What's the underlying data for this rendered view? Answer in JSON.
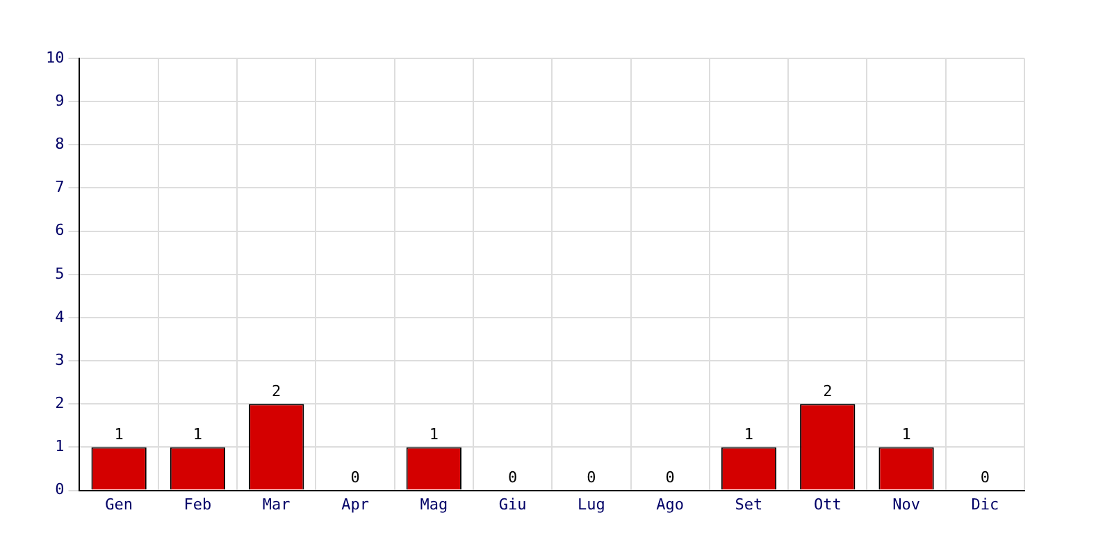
{
  "chart_data": {
    "type": "bar",
    "categories": [
      "Gen",
      "Feb",
      "Mar",
      "Apr",
      "Mag",
      "Giu",
      "Lug",
      "Ago",
      "Set",
      "Ott",
      "Nov",
      "Dic"
    ],
    "values": [
      1,
      1,
      2,
      0,
      1,
      0,
      0,
      0,
      1,
      2,
      1,
      0
    ],
    "color": "#d40000",
    "ylim": [
      0,
      10
    ],
    "yticks": [
      0,
      1,
      2,
      3,
      4,
      5,
      6,
      7,
      8,
      9,
      10
    ],
    "grid": true,
    "data_labels": true
  }
}
